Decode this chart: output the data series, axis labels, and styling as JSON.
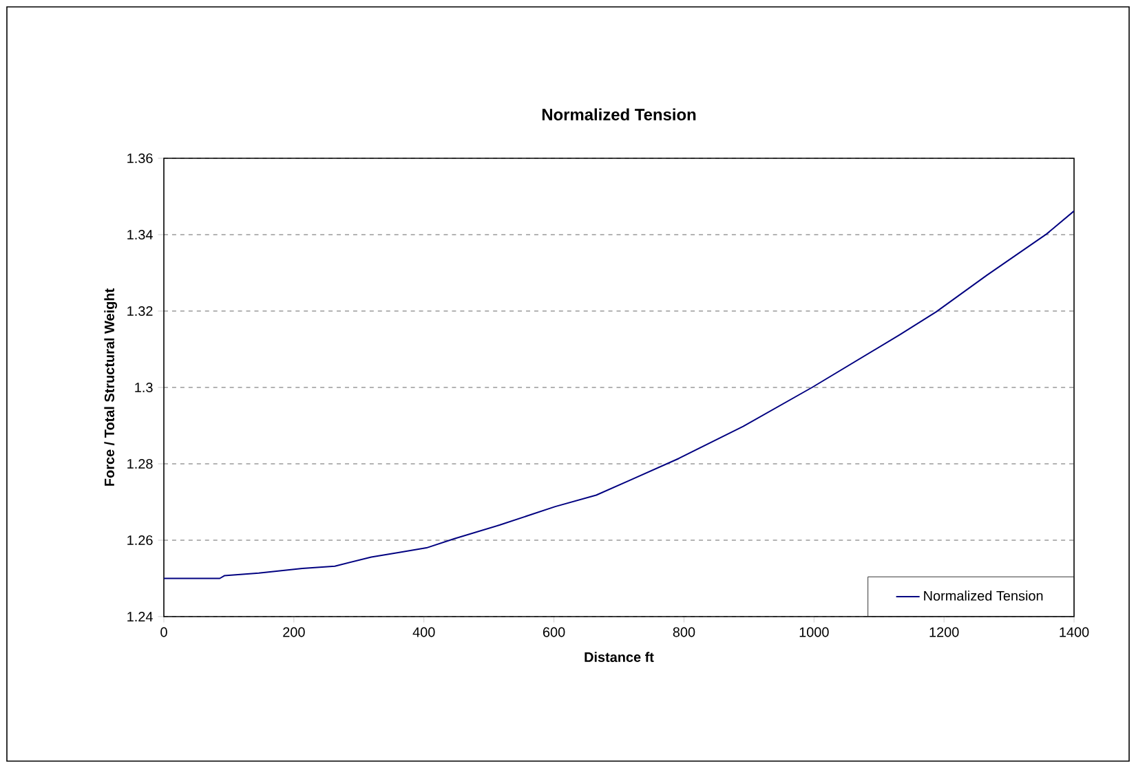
{
  "chart_data": {
    "type": "line",
    "title": "Normalized Tension",
    "xlabel": "Distance ft",
    "ylabel": "Force / Total Structural Weight",
    "xlim": [
      0,
      1400
    ],
    "xticks": [
      0,
      200,
      400,
      600,
      800,
      1000,
      1200,
      1400
    ],
    "ylim": [
      1.24,
      1.36
    ],
    "yticks": [
      1.24,
      1.26,
      1.28,
      1.3,
      1.32,
      1.34,
      1.36
    ],
    "grid": "y",
    "legend": "bottom right",
    "marker": "none",
    "line_style": "solid",
    "series": [
      {
        "name": "Normalized Tension",
        "color": "#000080",
        "x": [
          0,
          86,
          93,
          146,
          213,
          263,
          319,
          362,
          404,
          447,
          517,
          602,
          665,
          718,
          792,
          891,
          997,
          1132,
          1188,
          1266,
          1358,
          1400
        ],
        "values": [
          1.25,
          1.25,
          1.2507,
          1.2514,
          1.2526,
          1.2532,
          1.2556,
          1.2568,
          1.258,
          1.2604,
          1.264,
          1.2688,
          1.2718,
          1.2758,
          1.2814,
          1.2898,
          1.3,
          1.3138,
          1.3198,
          1.3294,
          1.3402,
          1.3462
        ]
      }
    ]
  }
}
